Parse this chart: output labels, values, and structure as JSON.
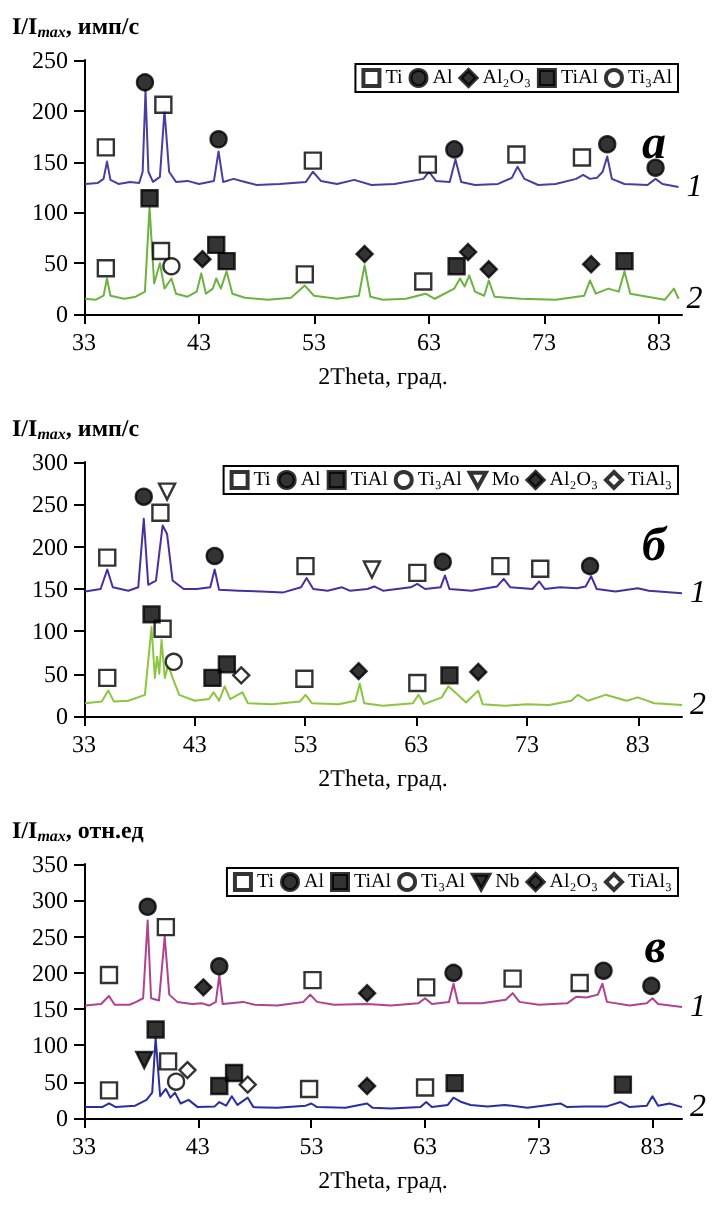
{
  "chart_data": [
    {
      "type": "line",
      "ylabel": "I/I$_{max}$, имп/с",
      "xlabel": "2Theta, град.",
      "xlim": [
        33,
        85
      ],
      "xticks": [
        33,
        43,
        53,
        63,
        73,
        83
      ],
      "ylim": [
        0,
        250
      ],
      "yticks": [
        0,
        50,
        100,
        150,
        200,
        250
      ],
      "grid": false,
      "legend": "top right",
      "annotations": [
        "а",
        {
          "text": "1",
          "x": 84.7,
          "y": 125
        },
        {
          "text": "2",
          "x": 84.7,
          "y": 15
        }
      ],
      "series": [
        {
          "type": "line",
          "color": "#4b3ca0",
          "marker": "none",
          "x": [
            33.1,
            34.2,
            34.7,
            35.0,
            35.3,
            36,
            37,
            37.8,
            38.1,
            38.35,
            38.6,
            39.0,
            39.6,
            40.0,
            40.4,
            41,
            42,
            43,
            44.3,
            44.7,
            45.1,
            46,
            47,
            48,
            50,
            52.3,
            52.9,
            53.6,
            55,
            56.5,
            58,
            60,
            62.5,
            63.0,
            63.6,
            64.8,
            65.3,
            65.8,
            67,
            69,
            70.2,
            70.7,
            71.3,
            72.5,
            74,
            75.8,
            76.4,
            77,
            77.6,
            78.1,
            78.5,
            78.9,
            80,
            82,
            82.7,
            83.3,
            84.7
          ],
          "values": [
            128,
            129,
            133,
            150,
            132,
            128,
            130,
            129,
            140,
            220,
            140,
            130,
            135,
            200,
            140,
            130,
            131,
            128,
            131,
            160,
            130,
            133,
            130,
            127,
            128,
            130,
            140,
            131,
            128,
            132,
            127,
            128,
            133,
            140,
            131,
            130,
            152,
            130,
            127,
            128,
            134,
            145,
            133,
            127,
            128,
            133,
            137,
            133,
            134,
            140,
            155,
            133,
            128,
            127,
            133,
            128,
            125
          ]
        },
        {
          "type": "line",
          "color": "#6db33f",
          "marker": "none",
          "x": [
            33.1,
            34,
            34.7,
            35.0,
            35.3,
            36.5,
            37.5,
            38.3,
            38.7,
            39.1,
            39.6,
            40.0,
            40.6,
            41,
            42,
            42.8,
            43.2,
            43.6,
            44.2,
            44.5,
            44.9,
            45.4,
            45.9,
            47,
            49,
            51,
            52.2,
            53,
            55,
            56.9,
            57.4,
            57.9,
            59,
            61,
            62.7,
            63.5,
            65.2,
            65.7,
            66.1,
            66.5,
            67,
            67.8,
            68.2,
            68.7,
            71,
            74,
            76.5,
            77.0,
            77.5,
            78.6,
            79.5,
            80.0,
            80.5,
            82,
            83.5,
            84.3,
            84.7
          ],
          "values": [
            15,
            14,
            18,
            35,
            18,
            15,
            17,
            22,
            105,
            30,
            50,
            25,
            35,
            20,
            17,
            22,
            40,
            20,
            25,
            35,
            25,
            42,
            20,
            16,
            14,
            16,
            28,
            18,
            15,
            18,
            48,
            17,
            14,
            15,
            20,
            15,
            25,
            35,
            27,
            38,
            22,
            18,
            33,
            17,
            15,
            14,
            18,
            33,
            20,
            25,
            22,
            42,
            20,
            17,
            14,
            25,
            15
          ]
        },
        {
          "type": "scatter",
          "name": "Ti",
          "color": "#ffffff",
          "marker": "square",
          "x": [
            34.9,
            39.9,
            52.9,
            62.9,
            70.6,
            76.3,
            34.9,
            39.7,
            52.2,
            62.5
          ],
          "values": [
            164,
            206,
            151,
            147,
            157,
            154,
            45,
            62,
            39,
            32
          ]
        },
        {
          "type": "scatter",
          "name": "Al",
          "color": "#000000",
          "marker": "circle",
          "x": [
            38.3,
            44.7,
            65.2,
            78.5,
            82.7
          ],
          "values": [
            228,
            172,
            162,
            167,
            144
          ]
        },
        {
          "type": "scatter",
          "name": "Al₂O₃",
          "color": "#000000",
          "marker": "diamond",
          "x": [
            43.3,
            57.4,
            66.4,
            68.2,
            77.1
          ],
          "values": [
            54,
            59,
            61,
            44,
            49
          ]
        },
        {
          "type": "scatter",
          "name": "TiAl",
          "color": "#000000",
          "marker": "square",
          "x": [
            38.7,
            44.5,
            45.4,
            65.4,
            80.0
          ],
          "values": [
            114,
            68,
            52,
            47,
            52
          ]
        },
        {
          "type": "scatter",
          "name": "Ti₃Al",
          "color": "#ffffff",
          "marker": "circle",
          "x": [
            40.6
          ],
          "values": [
            47
          ]
        }
      ]
    },
    {
      "type": "line",
      "ylabel": "I/I$_{max}$, имп/с",
      "xlabel": "2Theta, град.",
      "xlim": [
        33,
        87
      ],
      "xticks": [
        33,
        43,
        53,
        63,
        73,
        83
      ],
      "ylim": [
        0,
        300
      ],
      "yticks": [
        0,
        50,
        100,
        150,
        200,
        250,
        300
      ],
      "grid": false,
      "legend": "top right",
      "annotations": [
        "б",
        {
          "text": "1",
          "x": 87,
          "y": 145
        },
        {
          "text": "2",
          "x": 87,
          "y": 13
        }
      ],
      "series": [
        {
          "type": "line",
          "color": "#4a2ea0",
          "marker": "none",
          "x": [
            33.1,
            34.5,
            35.1,
            35.6,
            37,
            37.9,
            38.4,
            38.8,
            39.5,
            40.1,
            40.5,
            41,
            42,
            43.2,
            44.4,
            44.8,
            45.2,
            47,
            49,
            51,
            52.6,
            53.1,
            53.7,
            55,
            56.3,
            57,
            58.6,
            59.2,
            60,
            62.5,
            63.1,
            63.8,
            65.2,
            65.6,
            66,
            68,
            70.3,
            70.9,
            71.5,
            73.5,
            74.1,
            74.6,
            76,
            77.5,
            78.3,
            78.8,
            79.3,
            81,
            83,
            84,
            87
          ],
          "values": [
            147,
            150,
            173,
            152,
            148,
            152,
            233,
            155,
            160,
            225,
            215,
            160,
            150,
            150,
            152,
            173,
            149,
            148,
            147,
            146,
            152,
            163,
            150,
            148,
            152,
            148,
            150,
            153,
            148,
            152,
            156,
            150,
            152,
            166,
            150,
            148,
            153,
            162,
            152,
            150,
            159,
            150,
            152,
            151,
            153,
            165,
            150,
            147,
            151,
            148,
            145
          ]
        },
        {
          "type": "line",
          "color": "#8cc63f",
          "marker": "none",
          "x": [
            33.1,
            34.6,
            35.2,
            35.7,
            37,
            38.5,
            39.1,
            39.4,
            39.6,
            39.8,
            40.0,
            40.3,
            40.6,
            41.0,
            41.6,
            43,
            44.3,
            44.7,
            45.2,
            45.7,
            46.2,
            47.3,
            47.8,
            50,
            52.5,
            53.0,
            53.6,
            56,
            57.5,
            57.9,
            58.3,
            60,
            62.7,
            63.2,
            63.7,
            65.3,
            65.9,
            66.6,
            67.5,
            68.6,
            69,
            71,
            73,
            75,
            77,
            77.6,
            78.5,
            80.1,
            82,
            83,
            84.5,
            87
          ],
          "values": [
            15,
            17,
            30,
            17,
            18,
            25,
            105,
            45,
            70,
            50,
            90,
            45,
            60,
            45,
            25,
            18,
            20,
            28,
            18,
            35,
            20,
            28,
            15,
            14,
            17,
            25,
            15,
            14,
            18,
            38,
            15,
            12,
            15,
            25,
            14,
            22,
            35,
            27,
            16,
            30,
            14,
            12,
            14,
            13,
            18,
            25,
            18,
            25,
            18,
            22,
            15,
            13
          ]
        },
        {
          "type": "scatter",
          "name": "Ti",
          "color": "#ffffff",
          "marker": "square",
          "x": [
            35.1,
            39.9,
            53.0,
            63.1,
            70.6,
            74.2,
            35.1,
            40.1,
            52.9,
            63.1
          ],
          "values": [
            187,
            240,
            177,
            169,
            177,
            174,
            45,
            103,
            44,
            39
          ]
        },
        {
          "type": "scatter",
          "name": "Al",
          "color": "#000000",
          "marker": "circle",
          "x": [
            38.4,
            44.8,
            65.4,
            78.7
          ],
          "values": [
            259,
            189,
            182,
            177
          ]
        },
        {
          "type": "scatter",
          "name": "TiAl",
          "color": "#000000",
          "marker": "square",
          "x": [
            39.1,
            44.6,
            45.9,
            66.0
          ],
          "values": [
            120,
            45,
            61,
            48
          ]
        },
        {
          "type": "scatter",
          "name": "Ti₃Al",
          "color": "#ffffff",
          "marker": "circle",
          "x": [
            41.1
          ],
          "values": [
            64
          ]
        },
        {
          "type": "scatter",
          "name": "Mo",
          "color": "#ffffff",
          "marker": "triangle-down",
          "x": [
            40.5,
            59.0
          ],
          "values": [
            265,
            173
          ]
        },
        {
          "type": "scatter",
          "name": "Al₂O₃",
          "color": "#000000",
          "marker": "diamond",
          "x": [
            57.8,
            68.6
          ],
          "values": [
            53,
            52
          ]
        },
        {
          "type": "scatter",
          "name": "TiAl₃",
          "color": "#ffffff",
          "marker": "diamond",
          "x": [
            47.2
          ],
          "values": [
            48
          ]
        }
      ]
    },
    {
      "type": "line",
      "ylabel": "I/I$_{max}$, отн.ед",
      "xlabel": "2Theta, град.",
      "xlim": [
        33,
        85.6
      ],
      "xticks": [
        33,
        43,
        53,
        63,
        73,
        83
      ],
      "ylim": [
        0,
        350
      ],
      "yticks": [
        0,
        50,
        100,
        150,
        200,
        250,
        300,
        350
      ],
      "grid": false,
      "legend": "top right",
      "annotations": [
        "в",
        {
          "text": "1",
          "x": 85.6,
          "y": 153
        },
        {
          "text": "2",
          "x": 85.6,
          "y": 15
        }
      ],
      "series": [
        {
          "type": "line",
          "color": "#b0428f",
          "marker": "none",
          "x": [
            33.1,
            34.5,
            35.2,
            35.7,
            37,
            37.6,
            38.2,
            38.6,
            38.9,
            39.6,
            40.1,
            40.5,
            41.2,
            42.5,
            43.4,
            44,
            44.6,
            44.9,
            45.2,
            47,
            48,
            50,
            52.3,
            52.9,
            53.5,
            55,
            57.9,
            60,
            62.4,
            63,
            63.6,
            65.1,
            65.5,
            65.9,
            68,
            70.1,
            70.7,
            71.3,
            73,
            75.5,
            76.3,
            77.2,
            78.2,
            78.6,
            79,
            81,
            82.5,
            83,
            83.5,
            85.6
          ],
          "values": [
            155,
            157,
            168,
            156,
            156,
            160,
            165,
            272,
            165,
            162,
            250,
            170,
            160,
            157,
            158,
            155,
            160,
            197,
            157,
            160,
            156,
            155,
            160,
            170,
            160,
            156,
            157,
            155,
            158,
            165,
            157,
            160,
            185,
            158,
            158,
            163,
            172,
            160,
            156,
            158,
            167,
            166,
            170,
            185,
            160,
            155,
            158,
            165,
            157,
            153
          ]
        },
        {
          "type": "line",
          "color": "#2a2ea0",
          "marker": "none",
          "x": [
            33.1,
            34.6,
            35.2,
            35.8,
            37.5,
            38.5,
            39.0,
            39.3,
            39.7,
            40.2,
            40.6,
            41.0,
            41.5,
            42.2,
            43,
            44.5,
            44.9,
            45.5,
            46,
            46.5,
            47.4,
            47.9,
            50,
            52.5,
            53,
            53.5,
            56,
            57.9,
            58.4,
            60,
            62.6,
            63.1,
            63.6,
            65,
            65.5,
            66.2,
            67,
            68.5,
            70,
            72,
            74.9,
            75.5,
            77,
            79,
            80.2,
            81,
            82.5,
            83,
            83.5,
            84.5,
            85.6
          ],
          "values": [
            15,
            15,
            20,
            15,
            17,
            25,
            35,
            110,
            30,
            40,
            28,
            35,
            20,
            25,
            15,
            16,
            22,
            17,
            30,
            18,
            28,
            15,
            14,
            17,
            20,
            15,
            14,
            20,
            14,
            13,
            15,
            22,
            15,
            18,
            28,
            22,
            18,
            16,
            18,
            14,
            20,
            15,
            16,
            16,
            22,
            15,
            17,
            30,
            17,
            20,
            15
          ]
        },
        {
          "type": "scatter",
          "name": "Ti",
          "color": "#ffffff",
          "marker": "square",
          "x": [
            35.2,
            40.2,
            53.1,
            63.1,
            70.7,
            76.6,
            35.2,
            40.4,
            52.8,
            63.0
          ],
          "values": [
            197,
            263,
            190,
            180,
            192,
            186,
            38,
            78,
            40,
            42
          ]
        },
        {
          "type": "scatter",
          "name": "Al",
          "color": "#000000",
          "marker": "circle",
          "x": [
            38.6,
            44.9,
            65.5,
            78.7,
            82.9
          ],
          "values": [
            291,
            209,
            200,
            203,
            182
          ]
        },
        {
          "type": "scatter",
          "name": "TiAl",
          "color": "#000000",
          "marker": "square",
          "x": [
            39.3,
            44.9,
            46.2,
            65.6,
            80.4
          ],
          "values": [
            122,
            44,
            62,
            48,
            46
          ]
        },
        {
          "type": "scatter",
          "name": "Ti₃Al",
          "color": "#ffffff",
          "marker": "circle",
          "x": [
            41.1
          ],
          "values": [
            50
          ]
        },
        {
          "type": "scatter",
          "name": "Nb",
          "color": "#000000",
          "marker": "triangle-down",
          "x": [
            38.3
          ],
          "values": [
            80
          ]
        },
        {
          "type": "scatter",
          "name": "Al₂O₃",
          "color": "#000000",
          "marker": "diamond",
          "x": [
            43.5,
            57.9,
            57.9
          ],
          "values": [
            180,
            172,
            44
          ]
        },
        {
          "type": "scatter",
          "name": "TiAl₃",
          "color": "#ffffff",
          "marker": "diamond",
          "x": [
            42.1,
            47.4
          ],
          "values": [
            66,
            46
          ]
        }
      ]
    }
  ]
}
